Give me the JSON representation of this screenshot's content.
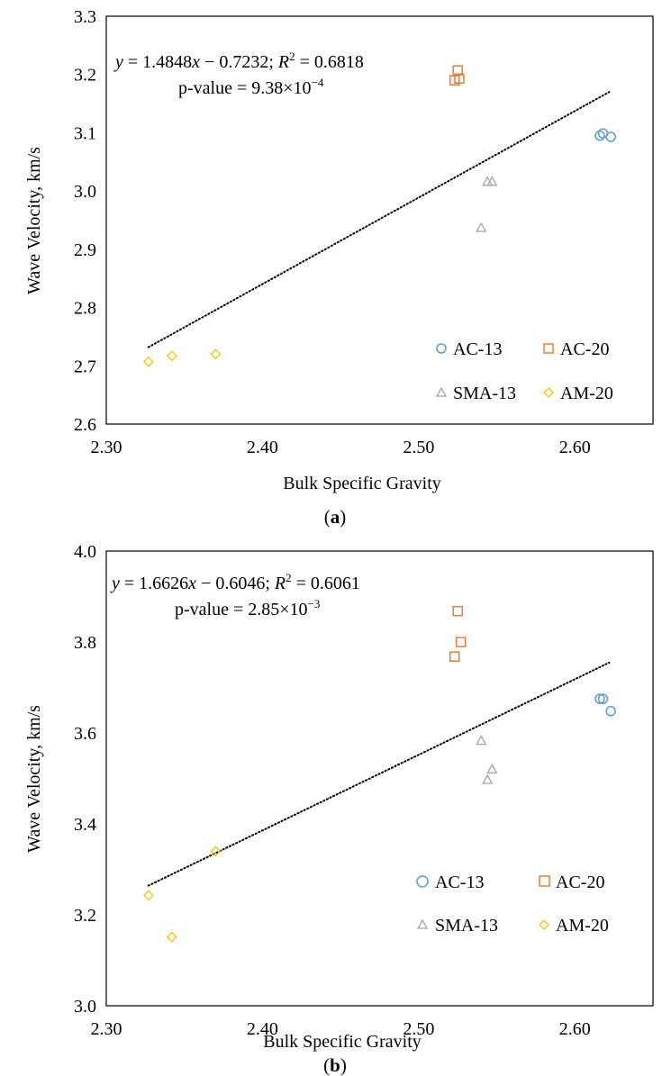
{
  "chart_data": [
    {
      "panel_label": "(a)",
      "panel_letter": "a",
      "type": "scatter",
      "xlabel": "Bulk Specific Gravity",
      "ylabel": "Wave Velocity, km/s",
      "xlim": [
        2.3,
        2.65
      ],
      "ylim": [
        2.6,
        3.3
      ],
      "xticks": [
        2.3,
        2.4,
        2.5,
        2.6
      ],
      "xtick_labels": [
        "2.30",
        "2.40",
        "2.50",
        "2.60"
      ],
      "yticks": [
        2.6,
        2.7,
        2.8,
        2.9,
        3.0,
        3.1,
        3.2,
        3.3
      ],
      "ytick_labels": [
        "2.6",
        "2.7",
        "2.8",
        "2.9",
        "3.0",
        "3.1",
        "3.2",
        "3.3"
      ],
      "equation_text": "y = 1.4848x − 0.7232; R² = 0.6818",
      "equation": {
        "y_var": "y",
        "eq_part1": " = 1.4848",
        "x_var": "x",
        "eq_part2": " − 0.7232; ",
        "r2_var": "R",
        "r2_sup": "2",
        "r2_val": " = 0.6818"
      },
      "pvalue": {
        "prefix": "p-value = 9.38×10",
        "exponent": "−4"
      },
      "trendline": {
        "slope": 1.4848,
        "intercept": -0.7232,
        "x_range": [
          2.327,
          2.622
        ]
      },
      "series": [
        {
          "name": "AC-13",
          "marker": "circle",
          "color": "#5B9BD5",
          "points": [
            [
              2.616,
              3.095
            ],
            [
              2.618,
              3.099
            ],
            [
              2.623,
              3.093
            ]
          ]
        },
        {
          "name": "AC-20",
          "marker": "square",
          "color": "#ED7D31",
          "points": [
            [
              2.523,
              3.19
            ],
            [
              2.525,
              3.207
            ],
            [
              2.526,
              3.193
            ]
          ]
        },
        {
          "name": "SMA-13",
          "marker": "triangle",
          "color": "#A5A5A5",
          "points": [
            [
              2.54,
              2.937
            ],
            [
              2.544,
              3.016
            ],
            [
              2.547,
              3.016
            ]
          ]
        },
        {
          "name": "AM-20",
          "marker": "diamond",
          "color": "#FFC000",
          "points": [
            [
              2.327,
              2.707
            ],
            [
              2.342,
              2.717
            ],
            [
              2.37,
              2.72
            ]
          ]
        }
      ]
    },
    {
      "panel_label": "(b)",
      "panel_letter": "b",
      "type": "scatter",
      "xlabel": "Bulk Specific Gravity",
      "ylabel": "Wave Velocity, km/s",
      "xlim": [
        2.3,
        2.65
      ],
      "ylim": [
        3.0,
        4.0
      ],
      "xticks": [
        2.3,
        2.4,
        2.5,
        2.6
      ],
      "xtick_labels": [
        "2.30",
        "2.40",
        "2.50",
        "2.60"
      ],
      "yticks": [
        3.0,
        3.2,
        3.4,
        3.6,
        3.8,
        4.0
      ],
      "ytick_labels": [
        "3.0",
        "3.2",
        "3.4",
        "3.6",
        "3.8",
        "4.0"
      ],
      "equation_text": "y = 1.6626x − 0.6046; R² = 0.6061",
      "equation": {
        "y_var": "y",
        "eq_part1": " = 1.6626",
        "x_var": "x",
        "eq_part2": " − 0.6046; ",
        "r2_var": "R",
        "r2_sup": "2",
        "r2_val": " = 0.6061"
      },
      "pvalue": {
        "prefix": "p-value = 2.85×10",
        "exponent": "−3"
      },
      "trendline": {
        "slope": 1.6626,
        "intercept": -0.6046,
        "x_range": [
          2.327,
          2.622
        ]
      },
      "series": [
        {
          "name": "AC-13",
          "marker": "circle",
          "color": "#5B9BD5",
          "points": [
            [
              2.616,
              3.675
            ],
            [
              2.618,
              3.675
            ],
            [
              2.623,
              3.648
            ]
          ]
        },
        {
          "name": "AC-20",
          "marker": "square",
          "color": "#ED7D31",
          "points": [
            [
              2.523,
              3.768
            ],
            [
              2.525,
              3.868
            ],
            [
              2.527,
              3.8
            ]
          ]
        },
        {
          "name": "SMA-13",
          "marker": "triangle",
          "color": "#A5A5A5",
          "points": [
            [
              2.54,
              3.583
            ],
            [
              2.544,
              3.497
            ],
            [
              2.547,
              3.52
            ]
          ]
        },
        {
          "name": "AM-20",
          "marker": "diamond",
          "color": "#FFC000",
          "points": [
            [
              2.327,
              3.243
            ],
            [
              2.342,
              3.151
            ],
            [
              2.37,
              3.34
            ]
          ]
        }
      ]
    }
  ]
}
